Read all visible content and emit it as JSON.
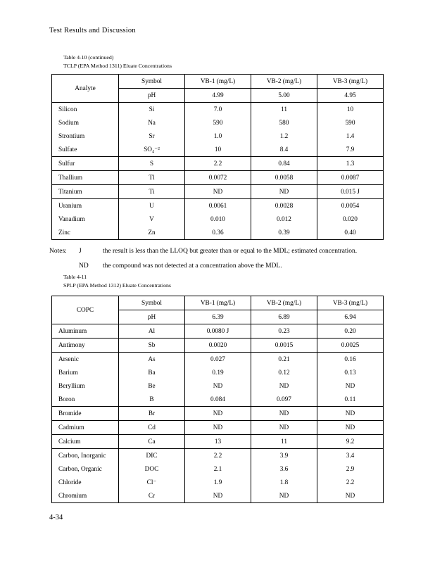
{
  "page": {
    "header_title": "Test Results and Discussion",
    "footer_page_number": "4-34"
  },
  "colors": {
    "text": "#000000",
    "background": "#ffffff",
    "table_border": "#000000"
  },
  "notes": {
    "label": "Notes:",
    "items": [
      {
        "qualifier": "J",
        "text": "the result is less than the LLOQ but greater than or equal to the MDL; estimated concentration."
      },
      {
        "qualifier": "ND",
        "text": "the compound was not detected at a concentration above the MDL."
      }
    ]
  },
  "tables": [
    {
      "caption_line1": "Table 4-10 (continued)",
      "caption_line2": "TCLP (EPA Method 1311) Eluate Concentrations",
      "row_header_label": "Analyte",
      "columns": [
        "Symbol",
        "VB-1 (mg/L)",
        "VB-2 (mg/L)",
        "VB-3 (mg/L)"
      ],
      "ph_row": {
        "symbol": "pH",
        "values": [
          "4.99",
          "5.00",
          "4.95"
        ]
      },
      "groups": [
        [
          [
            "Silicon",
            "Si",
            "7.0",
            "11",
            "10"
          ],
          [
            "Sodium",
            "Na",
            "590",
            "580",
            "590"
          ],
          [
            "Strontium",
            "Sr",
            "1.0",
            "1.2",
            "1.4"
          ],
          [
            "Sulfate",
            "SO₄⁻²",
            "10",
            "8.4",
            "7.9"
          ]
        ],
        [
          [
            "Sulfur",
            "S",
            "2.2",
            "0.84",
            "1.3"
          ]
        ],
        [
          [
            "Thallium",
            "Tl",
            "0.0072",
            "0.0058",
            "0.0087"
          ]
        ],
        [
          [
            "Titanium",
            "Ti",
            "ND",
            "ND",
            "0.015 J"
          ]
        ],
        [
          [
            "Uranium",
            "U",
            "0.0061",
            "0.0028",
            "0.0054"
          ],
          [
            "Vanadium",
            "V",
            "0.010",
            "0.012",
            "0.020"
          ],
          [
            "Zinc",
            "Zn",
            "0.36",
            "0.39",
            "0.40"
          ]
        ]
      ]
    },
    {
      "caption_line1": "Table 4-11",
      "caption_line2": "SPLP (EPA Method 1312) Eluate Concentrations",
      "row_header_label": "COPC",
      "columns": [
        "Symbol",
        "VB-1 (mg/L)",
        "VB-2 (mg/L)",
        "VB-3 (mg/L)"
      ],
      "ph_row": {
        "symbol": "pH",
        "values": [
          "6.39",
          "6.89",
          "6.94"
        ]
      },
      "groups": [
        [
          [
            "Aluminum",
            "Al",
            "0.0080 J",
            "0.23",
            "0.20"
          ]
        ],
        [
          [
            "Antimony",
            "Sb",
            "0.0020",
            "0.0015",
            "0.0025"
          ]
        ],
        [
          [
            "Arsenic",
            "As",
            "0.027",
            "0.21",
            "0.16"
          ],
          [
            "Barium",
            "Ba",
            "0.19",
            "0.12",
            "0.13"
          ],
          [
            "Beryllium",
            "Be",
            "ND",
            "ND",
            "ND"
          ],
          [
            "Boron",
            "B",
            "0.084",
            "0.097",
            "0.11"
          ]
        ],
        [
          [
            "Bromide",
            "Br",
            "ND",
            "ND",
            "ND"
          ]
        ],
        [
          [
            "Cadmium",
            "Cd",
            "ND",
            "ND",
            "ND"
          ]
        ],
        [
          [
            "Calcium",
            "Ca",
            "13",
            "11",
            "9.2"
          ]
        ],
        [
          [
            "Carbon, Inorganic",
            "DIC",
            "2.2",
            "3.9",
            "3.4"
          ],
          [
            "Carbon, Organic",
            "DOC",
            "2.1",
            "3.6",
            "2.9"
          ],
          [
            "Chloride",
            "Cl⁻",
            "1.9",
            "1.8",
            "2.2"
          ],
          [
            "Chromium",
            "Cr",
            "ND",
            "ND",
            "ND"
          ]
        ]
      ]
    }
  ]
}
